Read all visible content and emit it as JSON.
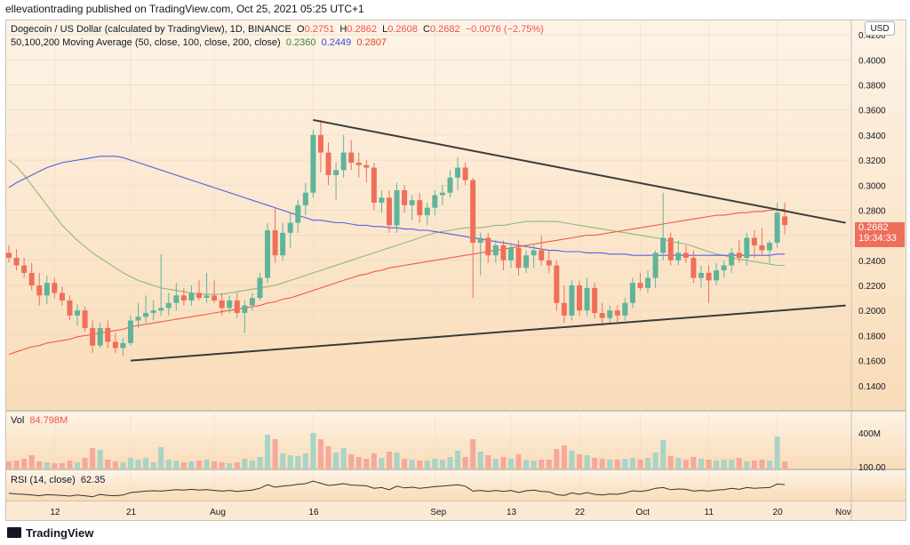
{
  "header": {
    "publisher_line": "ellevationtrading published on TradingView.com, Oct 25, 2021 05:25 UTC+1"
  },
  "legend": {
    "symbol_line": "Dogecoin / US Dollar (calculated by TradingView), 1D, BINANCE",
    "o_label": "O",
    "o_val": "0.2751",
    "h_label": "H",
    "h_val": "0.2862",
    "l_label": "L",
    "l_val": "0.2608",
    "c_label": "C",
    "c_val": "0.2682",
    "change": "−0.0076 (−2.75%)",
    "ma_line": "50,100,200 Moving Average (50, close, 100, close, 200, close)",
    "ma50_val": "0.2360",
    "ma100_val": "0.2449",
    "ma200_val": "0.2807",
    "vol_label": "Vol",
    "vol_val": "84.798M",
    "rsi_label": "RSI (14, close)",
    "rsi_val": "62.35"
  },
  "controls": {
    "currency_button": "USD"
  },
  "price_tag": {
    "last": "0.2682",
    "countdown": "19:34:33"
  },
  "footer": {
    "brand": "TradingView"
  },
  "colors": {
    "up": "#5fb49a",
    "down": "#ef6f5a",
    "ma50": "#8fb97a",
    "ma100": "#5560e0",
    "ma200": "#ef5a45",
    "trendline": "#3b3b3b"
  },
  "chart_data": {
    "type": "candlestick",
    "title": "Dogecoin / US Dollar (calculated by TradingView), 1D, BINANCE",
    "y_axis_ticks": [
      "0.4200",
      "0.4000",
      "0.3800",
      "0.3600",
      "0.3400",
      "0.3200",
      "0.3000",
      "0.2800",
      "0.2600",
      "0.2400",
      "0.2200",
      "0.2000",
      "0.1800",
      "0.1600",
      "0.1400"
    ],
    "x_axis_ticks": [
      "12",
      "21",
      "Aug",
      "16",
      "Sep",
      "13",
      "22",
      "Oct",
      "11",
      "20",
      "Nov"
    ],
    "volume_ticks": [
      "400M",
      "100.00"
    ],
    "ylim": [
      0.12,
      0.43
    ],
    "candles": [
      [
        0.246,
        0.252,
        0.238,
        0.242
      ],
      [
        0.242,
        0.249,
        0.232,
        0.236
      ],
      [
        0.236,
        0.242,
        0.226,
        0.23
      ],
      [
        0.23,
        0.238,
        0.216,
        0.22
      ],
      [
        0.22,
        0.23,
        0.204,
        0.212
      ],
      [
        0.212,
        0.228,
        0.205,
        0.222
      ],
      [
        0.222,
        0.226,
        0.21,
        0.214
      ],
      [
        0.214,
        0.219,
        0.204,
        0.208
      ],
      [
        0.208,
        0.212,
        0.192,
        0.196
      ],
      [
        0.196,
        0.205,
        0.188,
        0.2
      ],
      [
        0.2,
        0.203,
        0.183,
        0.186
      ],
      [
        0.186,
        0.192,
        0.166,
        0.172
      ],
      [
        0.172,
        0.19,
        0.17,
        0.186
      ],
      [
        0.186,
        0.192,
        0.17,
        0.175
      ],
      [
        0.175,
        0.182,
        0.166,
        0.17
      ],
      [
        0.17,
        0.178,
        0.164,
        0.174
      ],
      [
        0.174,
        0.196,
        0.172,
        0.192
      ],
      [
        0.192,
        0.206,
        0.186,
        0.195
      ],
      [
        0.195,
        0.212,
        0.19,
        0.198
      ],
      [
        0.198,
        0.208,
        0.192,
        0.2
      ],
      [
        0.2,
        0.245,
        0.196,
        0.202
      ],
      [
        0.202,
        0.214,
        0.196,
        0.206
      ],
      [
        0.206,
        0.222,
        0.2,
        0.212
      ],
      [
        0.212,
        0.218,
        0.204,
        0.208
      ],
      [
        0.208,
        0.22,
        0.204,
        0.214
      ],
      [
        0.214,
        0.224,
        0.208,
        0.21
      ],
      [
        0.21,
        0.23,
        0.206,
        0.212
      ],
      [
        0.212,
        0.224,
        0.206,
        0.208
      ],
      [
        0.208,
        0.214,
        0.196,
        0.202
      ],
      [
        0.202,
        0.212,
        0.198,
        0.208
      ],
      [
        0.208,
        0.214,
        0.194,
        0.198
      ],
      [
        0.198,
        0.208,
        0.182,
        0.204
      ],
      [
        0.204,
        0.214,
        0.2,
        0.21
      ],
      [
        0.21,
        0.23,
        0.208,
        0.226
      ],
      [
        0.226,
        0.27,
        0.222,
        0.264
      ],
      [
        0.264,
        0.282,
        0.238,
        0.244
      ],
      [
        0.244,
        0.27,
        0.24,
        0.262
      ],
      [
        0.262,
        0.278,
        0.25,
        0.27
      ],
      [
        0.27,
        0.288,
        0.262,
        0.284
      ],
      [
        0.284,
        0.302,
        0.276,
        0.294
      ],
      [
        0.294,
        0.344,
        0.29,
        0.34
      ],
      [
        0.34,
        0.352,
        0.31,
        0.326
      ],
      [
        0.326,
        0.334,
        0.3,
        0.308
      ],
      [
        0.308,
        0.318,
        0.288,
        0.312
      ],
      [
        0.312,
        0.34,
        0.306,
        0.326
      ],
      [
        0.326,
        0.336,
        0.312,
        0.318
      ],
      [
        0.318,
        0.326,
        0.306,
        0.316
      ],
      [
        0.316,
        0.32,
        0.302,
        0.314
      ],
      [
        0.314,
        0.318,
        0.28,
        0.286
      ],
      [
        0.286,
        0.296,
        0.278,
        0.29
      ],
      [
        0.29,
        0.296,
        0.262,
        0.268
      ],
      [
        0.268,
        0.302,
        0.262,
        0.296
      ],
      [
        0.296,
        0.3,
        0.278,
        0.284
      ],
      [
        0.284,
        0.292,
        0.272,
        0.288
      ],
      [
        0.288,
        0.294,
        0.27,
        0.276
      ],
      [
        0.276,
        0.286,
        0.268,
        0.282
      ],
      [
        0.282,
        0.296,
        0.276,
        0.292
      ],
      [
        0.292,
        0.3,
        0.284,
        0.294
      ],
      [
        0.294,
        0.312,
        0.29,
        0.306
      ],
      [
        0.306,
        0.322,
        0.296,
        0.314
      ],
      [
        0.314,
        0.318,
        0.3,
        0.304
      ],
      [
        0.304,
        0.306,
        0.21,
        0.254
      ],
      [
        0.254,
        0.262,
        0.228,
        0.258
      ],
      [
        0.258,
        0.262,
        0.238,
        0.244
      ],
      [
        0.244,
        0.256,
        0.238,
        0.252
      ],
      [
        0.252,
        0.256,
        0.232,
        0.24
      ],
      [
        0.24,
        0.254,
        0.234,
        0.25
      ],
      [
        0.25,
        0.256,
        0.228,
        0.234
      ],
      [
        0.234,
        0.248,
        0.23,
        0.244
      ],
      [
        0.244,
        0.252,
        0.234,
        0.248
      ],
      [
        0.248,
        0.26,
        0.236,
        0.24
      ],
      [
        0.24,
        0.248,
        0.23,
        0.236
      ],
      [
        0.236,
        0.24,
        0.2,
        0.206
      ],
      [
        0.206,
        0.22,
        0.19,
        0.196
      ],
      [
        0.196,
        0.224,
        0.192,
        0.22
      ],
      [
        0.22,
        0.224,
        0.196,
        0.2
      ],
      [
        0.2,
        0.226,
        0.196,
        0.218
      ],
      [
        0.218,
        0.222,
        0.194,
        0.198
      ],
      [
        0.198,
        0.206,
        0.188,
        0.194
      ],
      [
        0.194,
        0.204,
        0.19,
        0.2
      ],
      [
        0.2,
        0.204,
        0.19,
        0.196
      ],
      [
        0.196,
        0.21,
        0.192,
        0.206
      ],
      [
        0.206,
        0.226,
        0.202,
        0.222
      ],
      [
        0.222,
        0.23,
        0.216,
        0.218
      ],
      [
        0.218,
        0.232,
        0.214,
        0.226
      ],
      [
        0.226,
        0.248,
        0.218,
        0.246
      ],
      [
        0.246,
        0.294,
        0.24,
        0.258
      ],
      [
        0.258,
        0.262,
        0.236,
        0.24
      ],
      [
        0.24,
        0.256,
        0.236,
        0.246
      ],
      [
        0.246,
        0.252,
        0.238,
        0.242
      ],
      [
        0.242,
        0.248,
        0.222,
        0.226
      ],
      [
        0.226,
        0.236,
        0.218,
        0.23
      ],
      [
        0.23,
        0.236,
        0.206,
        0.224
      ],
      [
        0.224,
        0.238,
        0.22,
        0.232
      ],
      [
        0.232,
        0.24,
        0.226,
        0.236
      ],
      [
        0.236,
        0.25,
        0.23,
        0.246
      ],
      [
        0.246,
        0.256,
        0.238,
        0.242
      ],
      [
        0.242,
        0.262,
        0.236,
        0.258
      ],
      [
        0.258,
        0.264,
        0.242,
        0.252
      ],
      [
        0.252,
        0.266,
        0.244,
        0.248
      ],
      [
        0.248,
        0.256,
        0.238,
        0.254
      ],
      [
        0.254,
        0.286,
        0.25,
        0.278
      ],
      [
        0.2751,
        0.2862,
        0.2608,
        0.2682
      ]
    ],
    "volume_millions": [
      80,
      90,
      110,
      150,
      80,
      70,
      60,
      60,
      90,
      70,
      120,
      230,
      210,
      100,
      80,
      70,
      120,
      100,
      120,
      70,
      240,
      100,
      90,
      70,
      80,
      90,
      100,
      80,
      70,
      60,
      70,
      110,
      90,
      130,
      380,
      330,
      170,
      150,
      140,
      170,
      400,
      330,
      250,
      180,
      230,
      160,
      130,
      110,
      170,
      120,
      190,
      180,
      110,
      100,
      90,
      90,
      110,
      100,
      130,
      200,
      130,
      330,
      190,
      150,
      110,
      130,
      110,
      160,
      100,
      90,
      100,
      100,
      220,
      260,
      200,
      160,
      150,
      120,
      110,
      100,
      100,
      110,
      120,
      100,
      120,
      180,
      320,
      140,
      120,
      100,
      130,
      110,
      100,
      90,
      100,
      100,
      120,
      80,
      90,
      100,
      90,
      360,
      80
    ],
    "ma50": [
      0.32,
      0.315,
      0.308,
      0.3,
      0.292,
      0.284,
      0.276,
      0.268,
      0.262,
      0.256,
      0.251,
      0.246,
      0.242,
      0.238,
      0.234,
      0.23,
      0.227,
      0.224,
      0.222,
      0.22,
      0.218,
      0.217,
      0.216,
      0.215,
      0.214,
      0.213,
      0.213,
      0.213,
      0.213,
      0.214,
      0.215,
      0.216,
      0.217,
      0.218,
      0.219,
      0.22,
      0.222,
      0.224,
      0.226,
      0.228,
      0.23,
      0.232,
      0.234,
      0.236,
      0.238,
      0.24,
      0.242,
      0.244,
      0.246,
      0.248,
      0.25,
      0.252,
      0.254,
      0.256,
      0.258,
      0.26,
      0.262,
      0.263,
      0.264,
      0.265,
      0.266,
      0.266,
      0.266,
      0.267,
      0.268,
      0.268,
      0.269,
      0.27,
      0.271,
      0.271,
      0.271,
      0.271,
      0.271,
      0.27,
      0.269,
      0.268,
      0.267,
      0.266,
      0.265,
      0.264,
      0.263,
      0.262,
      0.261,
      0.26,
      0.259,
      0.258,
      0.257,
      0.255,
      0.254,
      0.253,
      0.251,
      0.249,
      0.247,
      0.245,
      0.244,
      0.242,
      0.241,
      0.24,
      0.239,
      0.238,
      0.237,
      0.236,
      0.236
    ],
    "ma100": [
      0.298,
      0.302,
      0.305,
      0.308,
      0.311,
      0.314,
      0.316,
      0.318,
      0.319,
      0.32,
      0.321,
      0.322,
      0.323,
      0.323,
      0.323,
      0.322,
      0.32,
      0.318,
      0.316,
      0.314,
      0.312,
      0.31,
      0.308,
      0.306,
      0.304,
      0.302,
      0.3,
      0.298,
      0.296,
      0.294,
      0.292,
      0.29,
      0.288,
      0.286,
      0.284,
      0.282,
      0.28,
      0.278,
      0.276,
      0.274,
      0.272,
      0.272,
      0.271,
      0.27,
      0.27,
      0.269,
      0.268,
      0.268,
      0.267,
      0.267,
      0.266,
      0.266,
      0.265,
      0.265,
      0.264,
      0.264,
      0.263,
      0.262,
      0.261,
      0.26,
      0.259,
      0.258,
      0.257,
      0.256,
      0.255,
      0.254,
      0.253,
      0.252,
      0.251,
      0.25,
      0.249,
      0.248,
      0.248,
      0.247,
      0.247,
      0.247,
      0.246,
      0.246,
      0.246,
      0.245,
      0.245,
      0.245,
      0.244,
      0.244,
      0.244,
      0.244,
      0.244,
      0.244,
      0.244,
      0.244,
      0.244,
      0.244,
      0.244,
      0.244,
      0.244,
      0.244,
      0.244,
      0.244,
      0.244,
      0.244,
      0.244,
      0.245,
      0.245
    ],
    "ma200": [
      0.165,
      0.167,
      0.169,
      0.171,
      0.172,
      0.174,
      0.175,
      0.176,
      0.177,
      0.179,
      0.18,
      0.181,
      0.182,
      0.183,
      0.184,
      0.185,
      0.187,
      0.188,
      0.189,
      0.19,
      0.191,
      0.192,
      0.193,
      0.194,
      0.195,
      0.196,
      0.197,
      0.198,
      0.199,
      0.2,
      0.201,
      0.202,
      0.203,
      0.204,
      0.206,
      0.207,
      0.209,
      0.21,
      0.212,
      0.214,
      0.216,
      0.218,
      0.22,
      0.222,
      0.224,
      0.226,
      0.228,
      0.229,
      0.231,
      0.232,
      0.234,
      0.235,
      0.236,
      0.237,
      0.238,
      0.239,
      0.24,
      0.241,
      0.242,
      0.243,
      0.244,
      0.245,
      0.246,
      0.247,
      0.248,
      0.249,
      0.25,
      0.251,
      0.252,
      0.253,
      0.254,
      0.255,
      0.256,
      0.257,
      0.258,
      0.259,
      0.26,
      0.26,
      0.261,
      0.262,
      0.263,
      0.264,
      0.265,
      0.266,
      0.267,
      0.268,
      0.269,
      0.27,
      0.271,
      0.272,
      0.273,
      0.274,
      0.275,
      0.276,
      0.276,
      0.277,
      0.278,
      0.278,
      0.279,
      0.279,
      0.28,
      0.2805,
      0.2807
    ],
    "rsi": [
      38,
      36,
      35,
      33,
      31,
      34,
      33,
      32,
      30,
      33,
      31,
      28,
      35,
      32,
      31,
      33,
      40,
      42,
      44,
      45,
      44,
      46,
      48,
      47,
      49,
      47,
      48,
      46,
      44,
      46,
      43,
      45,
      47,
      52,
      62,
      55,
      58,
      60,
      63,
      65,
      72,
      66,
      60,
      62,
      65,
      61,
      60,
      59,
      52,
      54,
      48,
      58,
      53,
      55,
      52,
      54,
      57,
      58,
      60,
      62,
      58,
      44,
      46,
      43,
      46,
      43,
      46,
      40,
      45,
      47,
      43,
      42,
      34,
      32,
      39,
      35,
      40,
      35,
      33,
      36,
      35,
      39,
      45,
      43,
      46,
      52,
      54,
      48,
      50,
      49,
      44,
      46,
      44,
      47,
      48,
      52,
      49,
      54,
      52,
      53,
      54,
      64,
      62.35
    ],
    "trendlines": [
      {
        "from": [
          40,
          0.352
        ],
        "to": [
          110,
          0.27
        ]
      },
      {
        "from": [
          16,
          0.16
        ],
        "to": [
          110,
          0.204
        ]
      }
    ]
  }
}
